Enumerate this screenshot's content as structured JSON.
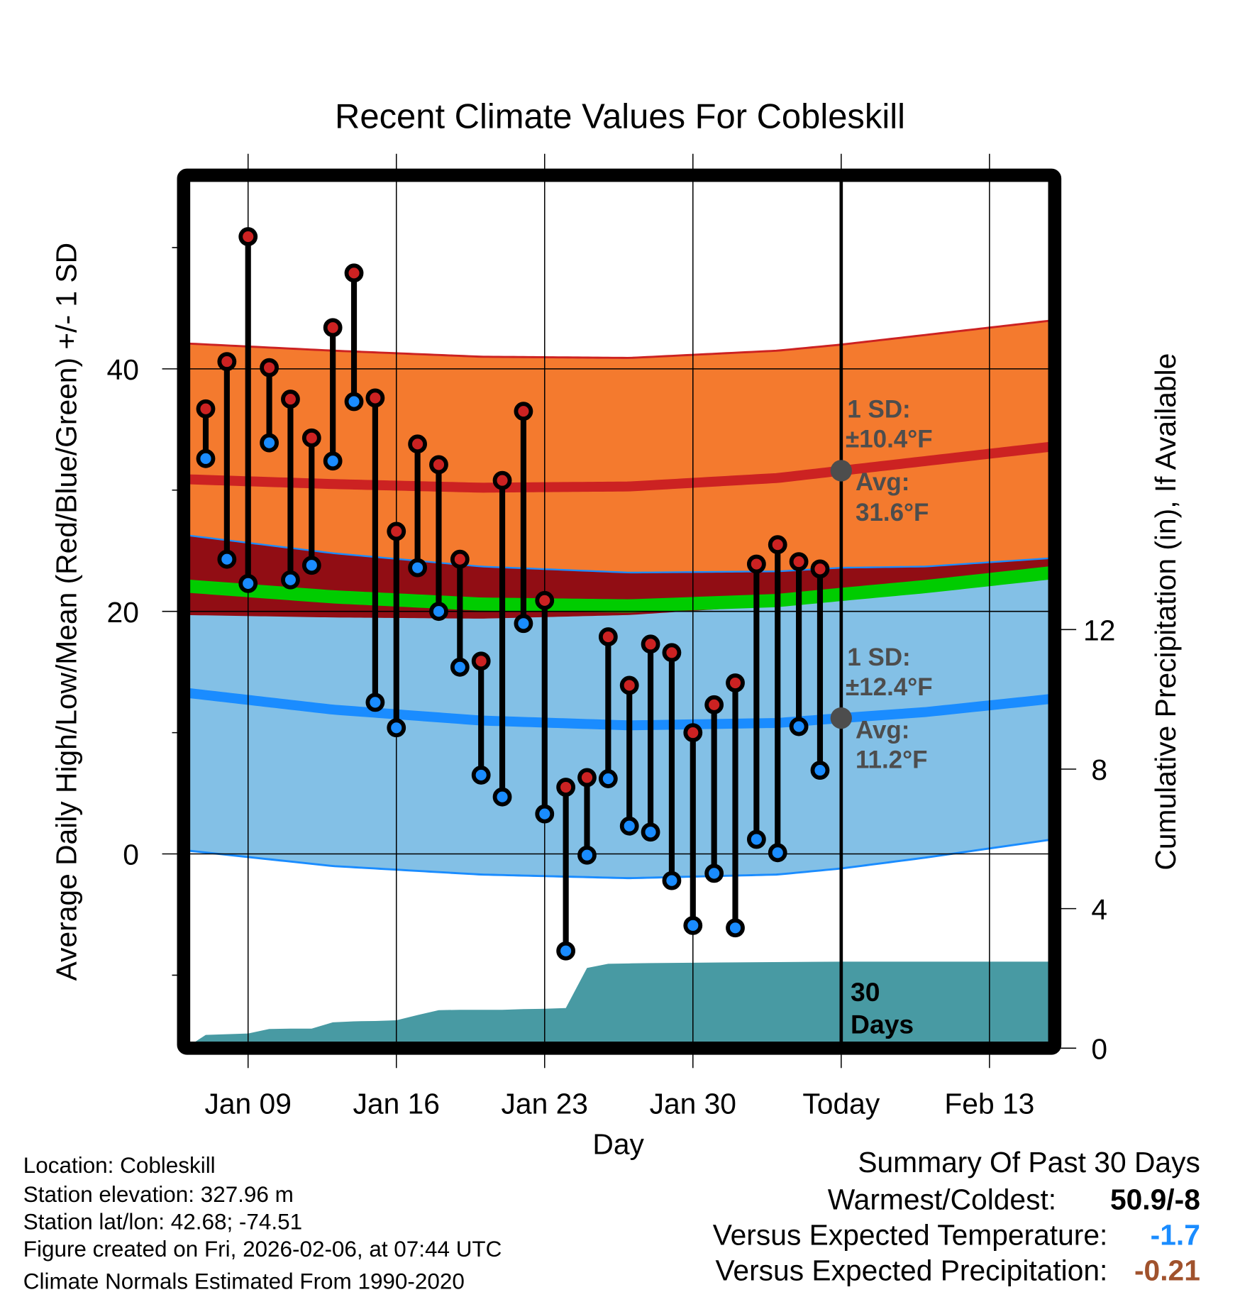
{
  "chart_data": {
    "type": "line",
    "title": "Recent Climate Values For Cobleskill",
    "xlabel": "Day",
    "ylabel": "Average Daily High/Low/Mean (Red/Blue/Green) +/- 1 SD",
    "y2label": "Cumulative Precipitation (in), If Available",
    "ylim": [
      -16,
      55
    ],
    "y2lim": [
      0,
      23
    ],
    "x_range": [
      "2026-01-06",
      "2026-02-16"
    ],
    "grid": true,
    "x_ticks": [
      {
        "date": "2026-01-09",
        "label": "Jan 09"
      },
      {
        "date": "2026-01-16",
        "label": "Jan 16"
      },
      {
        "date": "2026-01-23",
        "label": "Jan 23"
      },
      {
        "date": "2026-01-30",
        "label": "Jan 30"
      },
      {
        "date": "2026-02-06",
        "label": "Today"
      },
      {
        "date": "2026-02-13",
        "label": "Feb 13"
      }
    ],
    "y_ticks": [
      {
        "value": 0,
        "label": "0"
      },
      {
        "value": 20,
        "label": "20"
      },
      {
        "value": 40,
        "label": "40"
      }
    ],
    "y_minor_ticks": [
      -10,
      10,
      30,
      50
    ],
    "y2_ticks": [
      {
        "value": 0,
        "label": "0"
      },
      {
        "value": 4,
        "label": "4"
      },
      {
        "value": 8,
        "label": "8"
      },
      {
        "value": 12,
        "label": "12"
      }
    ],
    "today": "2026-02-06",
    "daily": {
      "dates": [
        "2026-01-07",
        "2026-01-08",
        "2026-01-09",
        "2026-01-10",
        "2026-01-11",
        "2026-01-12",
        "2026-01-13",
        "2026-01-14",
        "2026-01-15",
        "2026-01-16",
        "2026-01-17",
        "2026-01-18",
        "2026-01-19",
        "2026-01-20",
        "2026-01-21",
        "2026-01-22",
        "2026-01-23",
        "2026-01-24",
        "2026-01-25",
        "2026-01-26",
        "2026-01-27",
        "2026-01-28",
        "2026-01-29",
        "2026-01-30",
        "2026-01-31",
        "2026-02-01",
        "2026-02-02",
        "2026-02-03",
        "2026-02-04",
        "2026-02-05"
      ],
      "high": [
        36.7,
        40.6,
        50.9,
        40.1,
        37.5,
        34.3,
        43.4,
        47.9,
        37.6,
        26.6,
        33.8,
        32.1,
        24.3,
        15.9,
        30.8,
        36.5,
        20.9,
        5.5,
        6.3,
        17.9,
        13.9,
        17.3,
        16.6,
        10.0,
        12.3,
        14.1,
        23.9,
        25.5,
        24.1,
        23.5
      ],
      "low": [
        32.6,
        24.3,
        22.3,
        33.9,
        22.6,
        23.8,
        32.4,
        37.3,
        12.5,
        10.4,
        23.6,
        20.0,
        15.4,
        6.5,
        4.7,
        19.0,
        3.3,
        -8.0,
        -0.1,
        6.2,
        2.3,
        1.8,
        -2.2,
        -5.9,
        -1.6,
        -6.1,
        1.2,
        0.1,
        10.5,
        6.9
      ]
    },
    "normals": {
      "dates": [
        "2026-01-06",
        "2026-01-13",
        "2026-01-20",
        "2026-01-27",
        "2026-02-03",
        "2026-02-06",
        "2026-02-10",
        "2026-02-16"
      ],
      "high_avg": [
        30.9,
        30.5,
        30.2,
        30.3,
        31.0,
        31.6,
        32.4,
        33.6
      ],
      "high_sd": [
        11.2,
        11.0,
        10.8,
        10.6,
        10.5,
        10.4,
        10.4,
        10.4
      ],
      "low_avg": [
        13.3,
        11.9,
        11.0,
        10.6,
        10.8,
        11.2,
        11.7,
        12.8
      ],
      "low_sd": [
        13.0,
        12.9,
        12.7,
        12.6,
        12.5,
        12.4,
        12.0,
        11.6
      ]
    },
    "precip_cumulative": {
      "dates": [
        "2026-01-06",
        "2026-01-07",
        "2026-01-08",
        "2026-01-09",
        "2026-01-10",
        "2026-01-11",
        "2026-01-12",
        "2026-01-13",
        "2026-01-14",
        "2026-01-15",
        "2026-01-16",
        "2026-01-17",
        "2026-01-18",
        "2026-01-19",
        "2026-01-20",
        "2026-01-21",
        "2026-01-22",
        "2026-01-23",
        "2026-01-24",
        "2026-01-25",
        "2026-01-26",
        "2026-01-27",
        "2026-01-28",
        "2026-01-30",
        "2026-02-01",
        "2026-02-06",
        "2026-02-16"
      ],
      "values": [
        0,
        0.38,
        0.4,
        0.42,
        0.55,
        0.56,
        0.56,
        0.74,
        0.77,
        0.78,
        0.8,
        0.95,
        1.09,
        1.1,
        1.1,
        1.1,
        1.12,
        1.13,
        1.15,
        2.3,
        2.42,
        2.43,
        2.44,
        2.45,
        2.46,
        2.48,
        2.48
      ]
    },
    "annotations": {
      "high_sd": [
        "1 SD:",
        "±10.4°F"
      ],
      "high_avg": [
        "Avg:",
        "31.6°F"
      ],
      "low_sd": [
        "1 SD:",
        "±12.4°F"
      ],
      "low_avg": [
        "Avg:",
        "11.2°F"
      ],
      "period": [
        "30",
        "Days"
      ]
    },
    "colors": {
      "high_band": "#f47a2e",
      "low_band": "#83c0e6",
      "overlap": "#910d14",
      "mean": "#00cc00",
      "high_avg": "#cc2222",
      "low_avg": "#1a8cff",
      "precip": "#489aa3",
      "high_marker": "#cc2222",
      "low_marker": "#1a8cff",
      "annotation": "#4d4d4d"
    }
  },
  "info": {
    "lines": [
      "Location: Cobleskill",
      "Station elevation: 327.96 m",
      "Station lat/lon: 42.68; -74.51",
      "Figure created on Fri, 2026-02-06, at 07:44 UTC",
      "Climate Normals Estimated From 1990-2020"
    ]
  },
  "summary": {
    "title": "Summary Of Past 30 Days",
    "rows": [
      {
        "label": "Warmest/Coldest:",
        "value": "50.9/-8",
        "color": "#000000"
      },
      {
        "label": "Versus Expected Temperature:",
        "value": "-1.7",
        "color": "#1a8cff"
      },
      {
        "label": "Versus Expected Precipitation:",
        "value": "-0.21",
        "color": "#a0522d"
      }
    ]
  }
}
